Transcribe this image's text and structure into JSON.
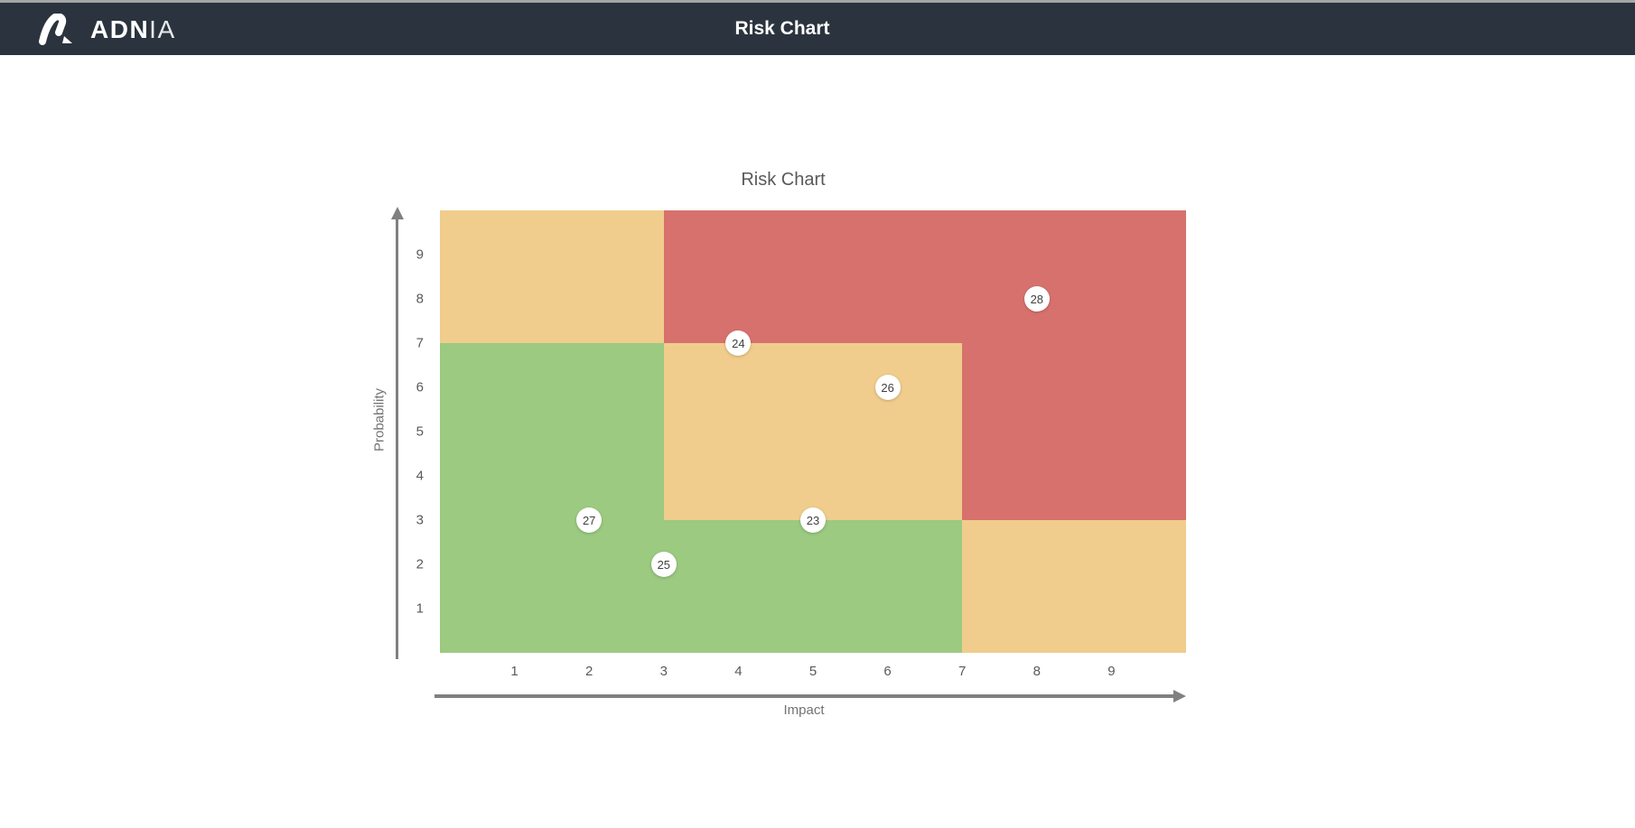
{
  "colors": {
    "header_bg": "#2B343E",
    "top_strip": "#A6A6A6",
    "green": "#9BCA80",
    "yellow": "#F0CD8C",
    "red": "#D7716D",
    "axis": "#808080",
    "tick_text": "#595959",
    "title_text": "#595959",
    "bubble_bg": "#FFFFFF",
    "bubble_text": "#404040"
  },
  "header": {
    "brand_bold": "ADN",
    "brand_light": "IA",
    "title": "Risk Chart"
  },
  "chart_data": {
    "type": "scatter",
    "title": "Risk Chart",
    "xlabel": "Impact",
    "ylabel": "Probability",
    "xlim": [
      0,
      10
    ],
    "ylim": [
      0,
      10
    ],
    "grid": false,
    "x_ticks": [
      1,
      2,
      3,
      4,
      5,
      6,
      7,
      8,
      9
    ],
    "y_ticks": [
      1,
      2,
      3,
      4,
      5,
      6,
      7,
      8,
      9
    ],
    "zones": [
      {
        "name": "low-risk-left",
        "color_key": "green",
        "x0": 0,
        "y0": 0,
        "x1": 3,
        "y1": 7
      },
      {
        "name": "low-risk-bottom",
        "color_key": "green",
        "x0": 3,
        "y0": 0,
        "x1": 7,
        "y1": 3
      },
      {
        "name": "medium-top-left",
        "color_key": "yellow",
        "x0": 0,
        "y0": 7,
        "x1": 3,
        "y1": 10
      },
      {
        "name": "medium-middle",
        "color_key": "yellow",
        "x0": 3,
        "y0": 3,
        "x1": 7,
        "y1": 7
      },
      {
        "name": "medium-bottom-right",
        "color_key": "yellow",
        "x0": 7,
        "y0": 0,
        "x1": 10,
        "y1": 3
      },
      {
        "name": "high-risk-top",
        "color_key": "red",
        "x0": 3,
        "y0": 7,
        "x1": 10,
        "y1": 10
      },
      {
        "name": "high-risk-right",
        "color_key": "red",
        "x0": 7,
        "y0": 3,
        "x1": 10,
        "y1": 7
      }
    ],
    "points": [
      {
        "label": "23",
        "x": 5,
        "y": 3
      },
      {
        "label": "24",
        "x": 4,
        "y": 7
      },
      {
        "label": "25",
        "x": 3,
        "y": 2
      },
      {
        "label": "26",
        "x": 6,
        "y": 6
      },
      {
        "label": "27",
        "x": 2,
        "y": 3
      },
      {
        "label": "28",
        "x": 8,
        "y": 8
      }
    ]
  }
}
